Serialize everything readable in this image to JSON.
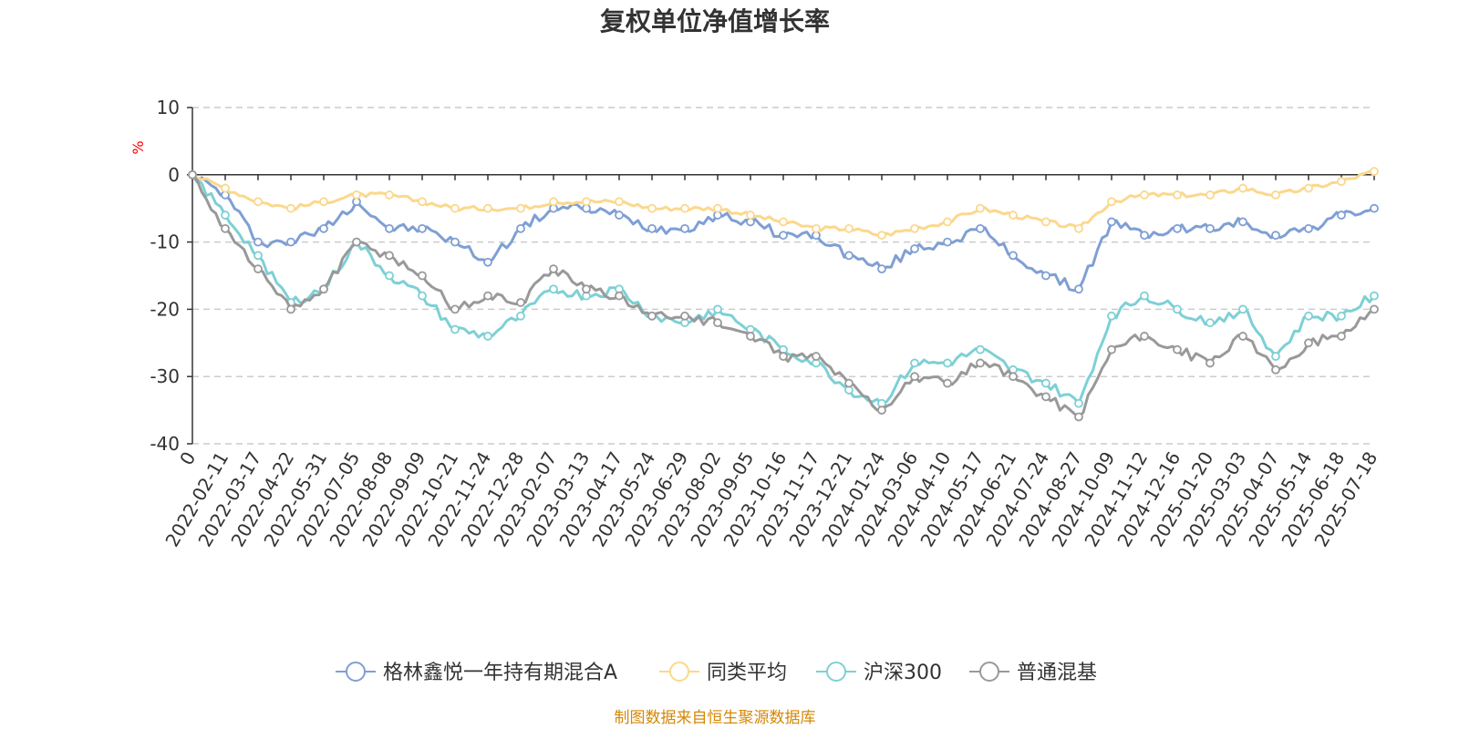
{
  "chart_data": {
    "type": "line",
    "title": "复权单位净值增长率",
    "ylabel": "%",
    "ylim": [
      -40,
      10
    ],
    "yticks": [
      "10",
      "0",
      "-10",
      "-20",
      "-30",
      "-40"
    ],
    "ytick_values": [
      10,
      0,
      -10,
      -20,
      -30,
      -40
    ],
    "grid": true,
    "legend_position": "bottom",
    "source_text": "制图数据来自恒生聚源数据库",
    "colors": {
      "title": "#333333",
      "unit": "#ff0000",
      "source": "#d48806",
      "grid": "#cccccc",
      "axis": "#333333"
    },
    "x": [
      "0",
      "2022-02-11",
      "2022-03-17",
      "2022-04-22",
      "2022-05-31",
      "2022-07-05",
      "2022-08-08",
      "2022-09-09",
      "2022-10-21",
      "2022-11-24",
      "2022-12-28",
      "2023-02-07",
      "2023-03-13",
      "2023-04-17",
      "2023-05-24",
      "2023-06-29",
      "2023-08-02",
      "2023-09-05",
      "2023-10-16",
      "2023-11-17",
      "2023-12-21",
      "2024-01-24",
      "2024-03-06",
      "2024-04-10",
      "2024-05-17",
      "2024-06-21",
      "2024-07-24",
      "2024-08-27",
      "2024-10-09",
      "2024-11-12",
      "2024-12-16",
      "2025-01-20",
      "2025-03-03",
      "2025-04-07",
      "2025-05-14",
      "2025-06-18",
      "2025-07-18"
    ],
    "series": [
      {
        "name": "格林鑫悦一年持有期混合A",
        "color": "#7f9fd4",
        "values": [
          0,
          -3,
          -10,
          -10,
          -8,
          -4,
          -8,
          -8,
          -10,
          -13,
          -8,
          -5,
          -5,
          -6,
          -8,
          -8,
          -6,
          -7,
          -9,
          -9,
          -12,
          -14,
          -11,
          -10,
          -8,
          -12,
          -15,
          -17,
          -7,
          -9,
          -8,
          -8,
          -7,
          -9,
          -8,
          -6,
          -5
        ]
      },
      {
        "name": "同类平均",
        "color": "#fbd88c",
        "values": [
          0,
          -2,
          -4,
          -5,
          -4,
          -3,
          -3,
          -4,
          -5,
          -5,
          -5,
          -4,
          -4,
          -4,
          -5,
          -5,
          -5,
          -6,
          -7,
          -8,
          -8,
          -9,
          -8,
          -7,
          -5,
          -6,
          -7,
          -8,
          -4,
          -3,
          -3,
          -3,
          -2,
          -3,
          -2,
          -1,
          0.5
        ]
      },
      {
        "name": "沪深300",
        "color": "#7dd0d5",
        "values": [
          0,
          -6,
          -12,
          -19,
          -17,
          -10,
          -15,
          -18,
          -23,
          -24,
          -21,
          -17,
          -18,
          -17,
          -21,
          -22,
          -20,
          -23,
          -26,
          -28,
          -32,
          -34,
          -28,
          -28,
          -26,
          -29,
          -31,
          -34,
          -21,
          -18,
          -20,
          -22,
          -20,
          -27,
          -21,
          -21,
          -18
        ]
      },
      {
        "name": "普通混基",
        "color": "#999999",
        "values": [
          0,
          -8,
          -14,
          -20,
          -17,
          -10,
          -12,
          -15,
          -20,
          -18,
          -19,
          -14,
          -17,
          -18,
          -21,
          -21,
          -22,
          -24,
          -27,
          -27,
          -31,
          -35,
          -30,
          -31,
          -28,
          -30,
          -33,
          -36,
          -26,
          -24,
          -26,
          -28,
          -24,
          -29,
          -25,
          -24,
          -20
        ]
      }
    ]
  }
}
